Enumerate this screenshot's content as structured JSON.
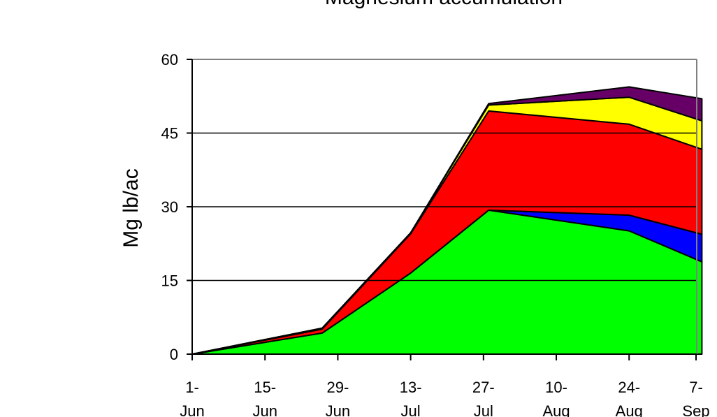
{
  "chart_data": {
    "type": "area",
    "stacked": true,
    "title": "Magnesium accumulation",
    "xlabel": "",
    "ylabel": "Mg lb/ac",
    "ylim": [
      0,
      60
    ],
    "yticks": [
      0,
      15,
      30,
      45,
      60
    ],
    "x_ticks": [
      {
        "line1": "1-",
        "line2": "Jun"
      },
      {
        "line1": "15-",
        "line2": "Jun"
      },
      {
        "line1": "29-",
        "line2": "Jun"
      },
      {
        "line1": "13-",
        "line2": "Jul"
      },
      {
        "line1": "27-",
        "line2": "Jul"
      },
      {
        "line1": "10-",
        "line2": "Aug"
      },
      {
        "line1": "24-",
        "line2": "Aug"
      },
      {
        "line1": "7-",
        "line2": "Sep"
      }
    ],
    "grid": "horizontal",
    "legend": "none",
    "x": [
      "6-01",
      "6-26",
      "7-13",
      "7-28",
      "8-24",
      "9-07"
    ],
    "series": [
      {
        "color": "#00ff00",
        "values": [
          0,
          4.3,
          16.5,
          29.3,
          25.1,
          18.8
        ]
      },
      {
        "color": "#0000ff",
        "values": [
          0,
          0,
          0,
          0,
          3.2,
          5.6
        ]
      },
      {
        "color": "#ff0000",
        "values": [
          0,
          0.8,
          8.0,
          20.2,
          18.5,
          17.3
        ]
      },
      {
        "color": "#ffff00",
        "values": [
          0,
          0.2,
          0.2,
          1.2,
          5.5,
          5.8
        ]
      },
      {
        "color": "#660066",
        "values": [
          0,
          0,
          0,
          0.3,
          2.1,
          4.5
        ]
      }
    ]
  }
}
